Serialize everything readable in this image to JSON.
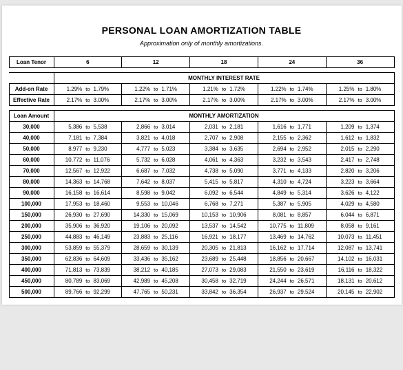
{
  "title": "PERSONAL LOAN AMORTIZATION TABLE",
  "subtitle": "Approximation only of monthly amortizations.",
  "headers": {
    "loan_tenor": "Loan Tenor",
    "addon_rate": "Add-on Rate",
    "effective_rate": "Effective Rate",
    "loan_amount": "Loan Amount",
    "monthly_interest": "MONTHLY INTEREST RATE",
    "monthly_amort": "MONTHLY AMORTIZATION"
  },
  "to_label": "to",
  "tenors": [
    "6",
    "12",
    "18",
    "24",
    "36"
  ],
  "addon": [
    {
      "lo": "1.29%",
      "hi": "1.79%"
    },
    {
      "lo": "1.22%",
      "hi": "1.71%"
    },
    {
      "lo": "1.21%",
      "hi": "1.72%"
    },
    {
      "lo": "1.22%",
      "hi": "1.74%"
    },
    {
      "lo": "1.25%",
      "hi": "1.80%"
    }
  ],
  "effective": [
    {
      "lo": "2.17%",
      "hi": "3.00%"
    },
    {
      "lo": "2.17%",
      "hi": "3.00%"
    },
    {
      "lo": "2.17%",
      "hi": "3.00%"
    },
    {
      "lo": "2.17%",
      "hi": "3.00%"
    },
    {
      "lo": "2.17%",
      "hi": "3.00%"
    }
  ],
  "rows": [
    {
      "amount": "30,000",
      "cells": [
        {
          "lo": "5,386",
          "hi": "5,538"
        },
        {
          "lo": "2,866",
          "hi": "3,014"
        },
        {
          "lo": "2,031",
          "hi": "2,181"
        },
        {
          "lo": "1,616",
          "hi": "1,771"
        },
        {
          "lo": "1,209",
          "hi": "1,374"
        }
      ]
    },
    {
      "amount": "40,000",
      "cells": [
        {
          "lo": "7,181",
          "hi": "7,384"
        },
        {
          "lo": "3,821",
          "hi": "4,018"
        },
        {
          "lo": "2,707",
          "hi": "2,908"
        },
        {
          "lo": "2,155",
          "hi": "2,362"
        },
        {
          "lo": "1,612",
          "hi": "1,832"
        }
      ]
    },
    {
      "amount": "50,000",
      "cells": [
        {
          "lo": "8,977",
          "hi": "9,230"
        },
        {
          "lo": "4,777",
          "hi": "5,023"
        },
        {
          "lo": "3,384",
          "hi": "3,635"
        },
        {
          "lo": "2,694",
          "hi": "2,952"
        },
        {
          "lo": "2,015",
          "hi": "2,290"
        }
      ]
    },
    {
      "amount": "60,000",
      "cells": [
        {
          "lo": "10,772",
          "hi": "11,076"
        },
        {
          "lo": "5,732",
          "hi": "6,028"
        },
        {
          "lo": "4,061",
          "hi": "4,363"
        },
        {
          "lo": "3,232",
          "hi": "3,543"
        },
        {
          "lo": "2,417",
          "hi": "2,748"
        }
      ]
    },
    {
      "amount": "70,000",
      "cells": [
        {
          "lo": "12,567",
          "hi": "12,922"
        },
        {
          "lo": "6,687",
          "hi": "7,032"
        },
        {
          "lo": "4,738",
          "hi": "5,090"
        },
        {
          "lo": "3,771",
          "hi": "4,133"
        },
        {
          "lo": "2,820",
          "hi": "3,206"
        }
      ]
    },
    {
      "amount": "80,000",
      "cells": [
        {
          "lo": "14,363",
          "hi": "14,768"
        },
        {
          "lo": "7,642",
          "hi": "8,037"
        },
        {
          "lo": "5,415",
          "hi": "5,817"
        },
        {
          "lo": "4,310",
          "hi": "4,724"
        },
        {
          "lo": "3,223",
          "hi": "3,664"
        }
      ]
    },
    {
      "amount": "90,000",
      "cells": [
        {
          "lo": "16,158",
          "hi": "16,614"
        },
        {
          "lo": "8,598",
          "hi": "9,042"
        },
        {
          "lo": "6,092",
          "hi": "6,544"
        },
        {
          "lo": "4,849",
          "hi": "5,314"
        },
        {
          "lo": "3,626",
          "hi": "4,122"
        }
      ]
    },
    {
      "amount": "100,000",
      "cells": [
        {
          "lo": "17,953",
          "hi": "18,460"
        },
        {
          "lo": "9,553",
          "hi": "10,046"
        },
        {
          "lo": "6,768",
          "hi": "7,271"
        },
        {
          "lo": "5,387",
          "hi": "5,905"
        },
        {
          "lo": "4,029",
          "hi": "4,580"
        }
      ]
    },
    {
      "amount": "150,000",
      "cells": [
        {
          "lo": "26,930",
          "hi": "27,690"
        },
        {
          "lo": "14,330",
          "hi": "15,069"
        },
        {
          "lo": "10,153",
          "hi": "10,906"
        },
        {
          "lo": "8,081",
          "hi": "8,857"
        },
        {
          "lo": "6,044",
          "hi": "6,871"
        }
      ]
    },
    {
      "amount": "200,000",
      "cells": [
        {
          "lo": "35,906",
          "hi": "36,920"
        },
        {
          "lo": "19,106",
          "hi": "20,092"
        },
        {
          "lo": "13,537",
          "hi": "14,542"
        },
        {
          "lo": "10,775",
          "hi": "11,809"
        },
        {
          "lo": "8,058",
          "hi": "9,161"
        }
      ]
    },
    {
      "amount": "250,000",
      "cells": [
        {
          "lo": "44,883",
          "hi": "46,149"
        },
        {
          "lo": "23,883",
          "hi": "25,116"
        },
        {
          "lo": "16,921",
          "hi": "18,177"
        },
        {
          "lo": "13,469",
          "hi": "14,762"
        },
        {
          "lo": "10,073",
          "hi": "11,451"
        }
      ]
    },
    {
      "amount": "300,000",
      "cells": [
        {
          "lo": "53,859",
          "hi": "55,379"
        },
        {
          "lo": "28,659",
          "hi": "30,139"
        },
        {
          "lo": "20,305",
          "hi": "21,813"
        },
        {
          "lo": "16,162",
          "hi": "17,714"
        },
        {
          "lo": "12,087",
          "hi": "13,741"
        }
      ]
    },
    {
      "amount": "350,000",
      "cells": [
        {
          "lo": "62,836",
          "hi": "64,609"
        },
        {
          "lo": "33,436",
          "hi": "35,162"
        },
        {
          "lo": "23,689",
          "hi": "25,448"
        },
        {
          "lo": "18,856",
          "hi": "20,667"
        },
        {
          "lo": "14,102",
          "hi": "16,031"
        }
      ]
    },
    {
      "amount": "400,000",
      "cells": [
        {
          "lo": "71,813",
          "hi": "73,839"
        },
        {
          "lo": "38,212",
          "hi": "40,185"
        },
        {
          "lo": "27,073",
          "hi": "29,083"
        },
        {
          "lo": "21,550",
          "hi": "23,619"
        },
        {
          "lo": "16,116",
          "hi": "18,322"
        }
      ]
    },
    {
      "amount": "450,000",
      "cells": [
        {
          "lo": "80,789",
          "hi": "83,069"
        },
        {
          "lo": "42,989",
          "hi": "45,208"
        },
        {
          "lo": "30,458",
          "hi": "32,719"
        },
        {
          "lo": "24,244",
          "hi": "26,571"
        },
        {
          "lo": "18,131",
          "hi": "20,612"
        }
      ]
    },
    {
      "amount": "500,000",
      "cells": [
        {
          "lo": "89,766",
          "hi": "92,299"
        },
        {
          "lo": "47,765",
          "hi": "50,231"
        },
        {
          "lo": "33,842",
          "hi": "36,354"
        },
        {
          "lo": "26,937",
          "hi": "29,524"
        },
        {
          "lo": "20,145",
          "hi": "22,902"
        }
      ]
    }
  ]
}
